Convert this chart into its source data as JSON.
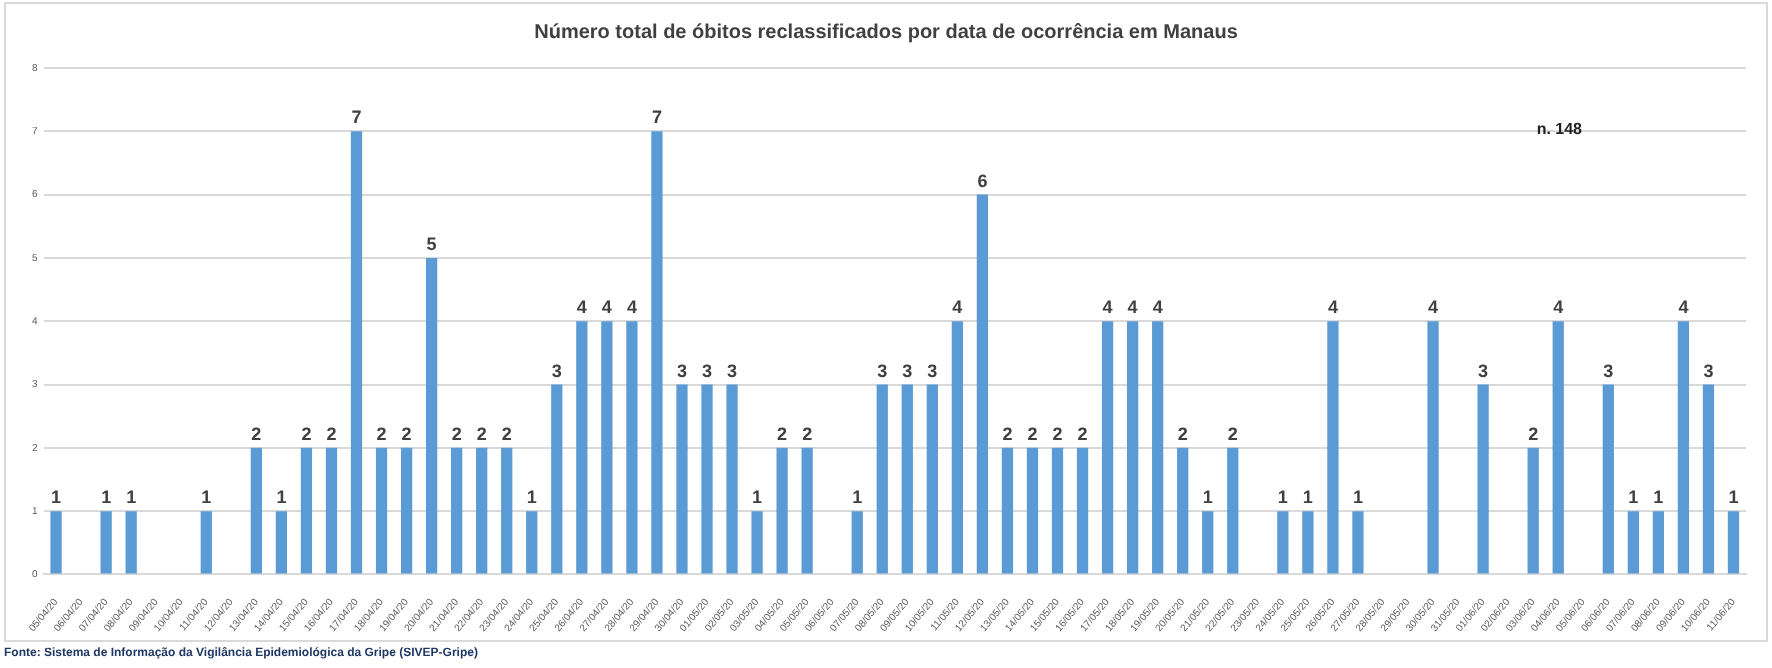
{
  "chart_data": {
    "type": "bar",
    "title": "Número total de óbitos reclassificados por data de ocorrência em Manaus",
    "categories": [
      "05/04/20",
      "06/04/20",
      "07/04/20",
      "08/04/20",
      "09/04/20",
      "10/04/20",
      "11/04/20",
      "12/04/20",
      "13/04/20",
      "14/04/20",
      "15/04/20",
      "16/04/20",
      "17/04/20",
      "18/04/20",
      "19/04/20",
      "20/04/20",
      "21/04/20",
      "22/04/20",
      "23/04/20",
      "24/04/20",
      "25/04/20",
      "26/04/20",
      "27/04/20",
      "28/04/20",
      "29/04/20",
      "30/04/20",
      "01/05/20",
      "02/05/20",
      "03/05/20",
      "04/05/20",
      "05/05/20",
      "06/05/20",
      "07/05/20",
      "08/05/20",
      "09/05/20",
      "10/05/20",
      "11/05/20",
      "12/05/20",
      "13/05/20",
      "14/05/20",
      "15/05/20",
      "16/05/20",
      "17/05/20",
      "18/05/20",
      "19/05/20",
      "20/05/20",
      "21/05/20",
      "22/05/20",
      "23/05/20",
      "24/05/20",
      "25/05/20",
      "26/05/20",
      "27/05/20",
      "28/05/20",
      "29/05/20",
      "30/05/20",
      "31/05/20",
      "01/06/20",
      "02/06/20",
      "03/06/20",
      "04/06/20",
      "05/06/20",
      "06/06/20",
      "07/06/20",
      "08/06/20",
      "09/06/20",
      "10/06/20",
      "11/06/20"
    ],
    "values": [
      1,
      0,
      1,
      1,
      0,
      0,
      1,
      0,
      2,
      1,
      2,
      2,
      7,
      2,
      2,
      5,
      2,
      2,
      2,
      1,
      3,
      4,
      4,
      4,
      7,
      3,
      3,
      3,
      1,
      2,
      2,
      0,
      1,
      3,
      3,
      3,
      4,
      6,
      2,
      2,
      2,
      2,
      4,
      4,
      4,
      2,
      1,
      2,
      0,
      1,
      1,
      4,
      1,
      0,
      0,
      4,
      0,
      3,
      0,
      2,
      4,
      0,
      3,
      1,
      1,
      4,
      3,
      1
    ],
    "value_labels": [
      "1",
      null,
      "1",
      "1",
      null,
      null,
      "1",
      null,
      "2",
      "1",
      "2",
      "2",
      "7",
      "2",
      "2",
      "5",
      "2",
      "2",
      "2",
      "1",
      "3",
      "4",
      "4",
      "4",
      "7",
      "3",
      "3",
      "3",
      "1",
      "2",
      "2",
      null,
      "1",
      "3",
      "3",
      "3",
      "4",
      "6",
      "2",
      "2",
      "2",
      "2",
      "4",
      "4",
      "4",
      "2",
      "1",
      "2",
      null,
      "1",
      "1",
      "4",
      "1",
      null,
      null,
      "4",
      null,
      "3",
      null,
      "2",
      "4",
      null,
      "3",
      "1",
      "1",
      "4",
      "3",
      "1"
    ],
    "color": "#5b9bd5",
    "ylim": [
      0,
      8
    ],
    "yticks": [
      0,
      1,
      2,
      3,
      4,
      5,
      6,
      7,
      8
    ],
    "grid": "y",
    "annotations": [
      "n. 148",
      "Fonte: Sistema de Informação da Vigilância Epidemiológica da Gripe (SIVEP-Gripe)"
    ]
  }
}
